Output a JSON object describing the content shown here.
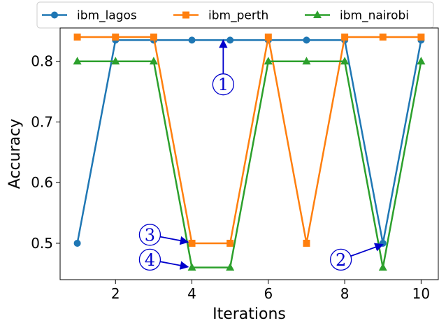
{
  "chart_data": {
    "type": "line",
    "xlabel": "Iterations",
    "ylabel": "Accuracy",
    "xlim": [
      0.55,
      10.45
    ],
    "ylim": [
      0.44,
      0.855
    ],
    "xticks": [
      2,
      4,
      6,
      8,
      10
    ],
    "xtick_labels": [
      "2",
      "4",
      "6",
      "8",
      "10"
    ],
    "yticks": [
      0.5,
      0.6,
      0.7,
      0.8
    ],
    "ytick_labels": [
      "0.5",
      "0.6",
      "0.7",
      "0.8"
    ],
    "grid": false,
    "legend_position": "top, outside plot",
    "x": [
      1,
      2,
      3,
      4,
      5,
      6,
      7,
      8,
      9,
      10
    ],
    "series": [
      {
        "name": "ibm_lagos",
        "color": "#1f77b4",
        "marker": "circle",
        "values": [
          0.5,
          0.835,
          0.835,
          0.835,
          0.835,
          0.835,
          0.835,
          0.835,
          0.5,
          0.835
        ]
      },
      {
        "name": "ibm_perth",
        "color": "#ff7f0e",
        "marker": "square",
        "values": [
          0.84,
          0.84,
          0.84,
          0.5,
          0.5,
          0.84,
          0.5,
          0.84,
          0.84,
          0.84
        ]
      },
      {
        "name": "ibm_nairobi",
        "color": "#2ca02c",
        "marker": "triangle",
        "values": [
          0.8,
          0.8,
          0.8,
          0.46,
          0.46,
          0.8,
          0.8,
          0.8,
          0.46,
          0.8
        ]
      }
    ],
    "annotations": [
      {
        "label": "1",
        "color": "#0000cc",
        "text_at": [
          4.82,
          0.762
        ],
        "arrow_to": [
          4.82,
          0.835
        ]
      },
      {
        "label": "2",
        "color": "#0000cc",
        "text_at": [
          7.9,
          0.473
        ],
        "arrow_to": [
          9.0,
          0.498
        ]
      },
      {
        "label": "3",
        "color": "#0000cc",
        "text_at": [
          2.9,
          0.514
        ],
        "arrow_to": [
          3.9,
          0.502
        ]
      },
      {
        "label": "4",
        "color": "#0000cc",
        "text_at": [
          2.9,
          0.473
        ],
        "arrow_to": [
          3.9,
          0.461
        ]
      }
    ]
  }
}
